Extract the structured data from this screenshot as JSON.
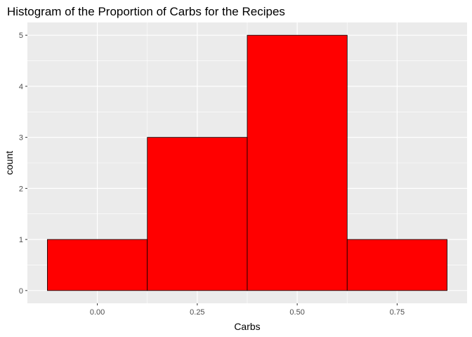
{
  "chart_data": {
    "type": "bar",
    "subtype": "histogram",
    "title": "Histogram of the Proportion of Carbs for the Recipes",
    "xlabel": "Carbs",
    "ylabel": "count",
    "bins": [
      {
        "x0": -0.125,
        "x1": 0.125,
        "count": 1
      },
      {
        "x0": 0.125,
        "x1": 0.375,
        "count": 3
      },
      {
        "x0": 0.375,
        "x1": 0.625,
        "count": 5
      },
      {
        "x0": 0.625,
        "x1": 0.875,
        "count": 1
      }
    ],
    "xticks": [
      0.0,
      0.25,
      0.5,
      0.75
    ],
    "xtick_labels": [
      "0.00",
      "0.25",
      "0.50",
      "0.75"
    ],
    "yticks": [
      0,
      1,
      2,
      3,
      4,
      5
    ],
    "ytick_labels": [
      "0",
      "1",
      "2",
      "3",
      "4",
      "5"
    ],
    "xlim": [
      -0.175,
      0.925
    ],
    "ylim": [
      -0.25,
      5.25
    ],
    "grid": true,
    "colors": {
      "bar_fill": "#ff0000",
      "bar_outline": "#000000",
      "panel_background": "#ebebeb",
      "grid": "#ffffff"
    }
  }
}
